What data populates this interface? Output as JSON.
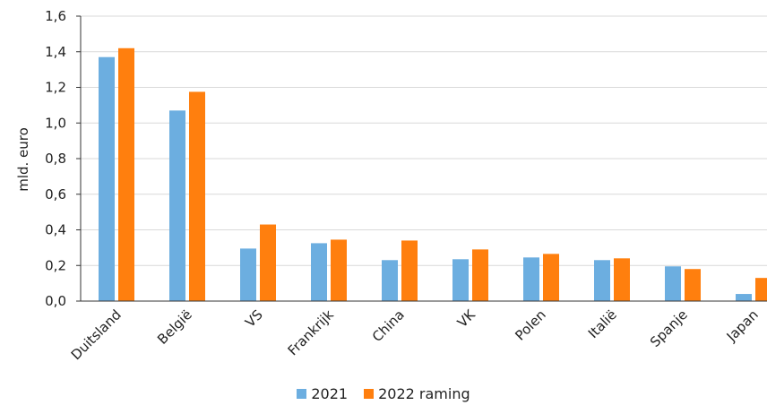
{
  "chart_data": {
    "type": "bar",
    "ylabel": "mld. euro",
    "ylim": [
      0,
      1.6
    ],
    "yticks": [
      "0,0",
      "0,2",
      "0,4",
      "0,6",
      "0,8",
      "1,0",
      "1,2",
      "1,4",
      "1,6"
    ],
    "grid": true,
    "legend_position": "bottom",
    "categories": [
      "Duitsland",
      "België",
      "VS",
      "Frankrijk",
      "China",
      "VK",
      "Polen",
      "Italië",
      "Spanje",
      "Japan"
    ],
    "series": [
      {
        "name": "2021",
        "color": "#6CAEE0",
        "values": [
          1.37,
          1.07,
          0.295,
          0.325,
          0.23,
          0.235,
          0.245,
          0.23,
          0.195,
          0.04
        ]
      },
      {
        "name": "2022 raming",
        "color": "#FF7F0E",
        "values": [
          1.42,
          1.175,
          0.43,
          0.345,
          0.34,
          0.29,
          0.265,
          0.24,
          0.18,
          0.13
        ]
      }
    ]
  }
}
